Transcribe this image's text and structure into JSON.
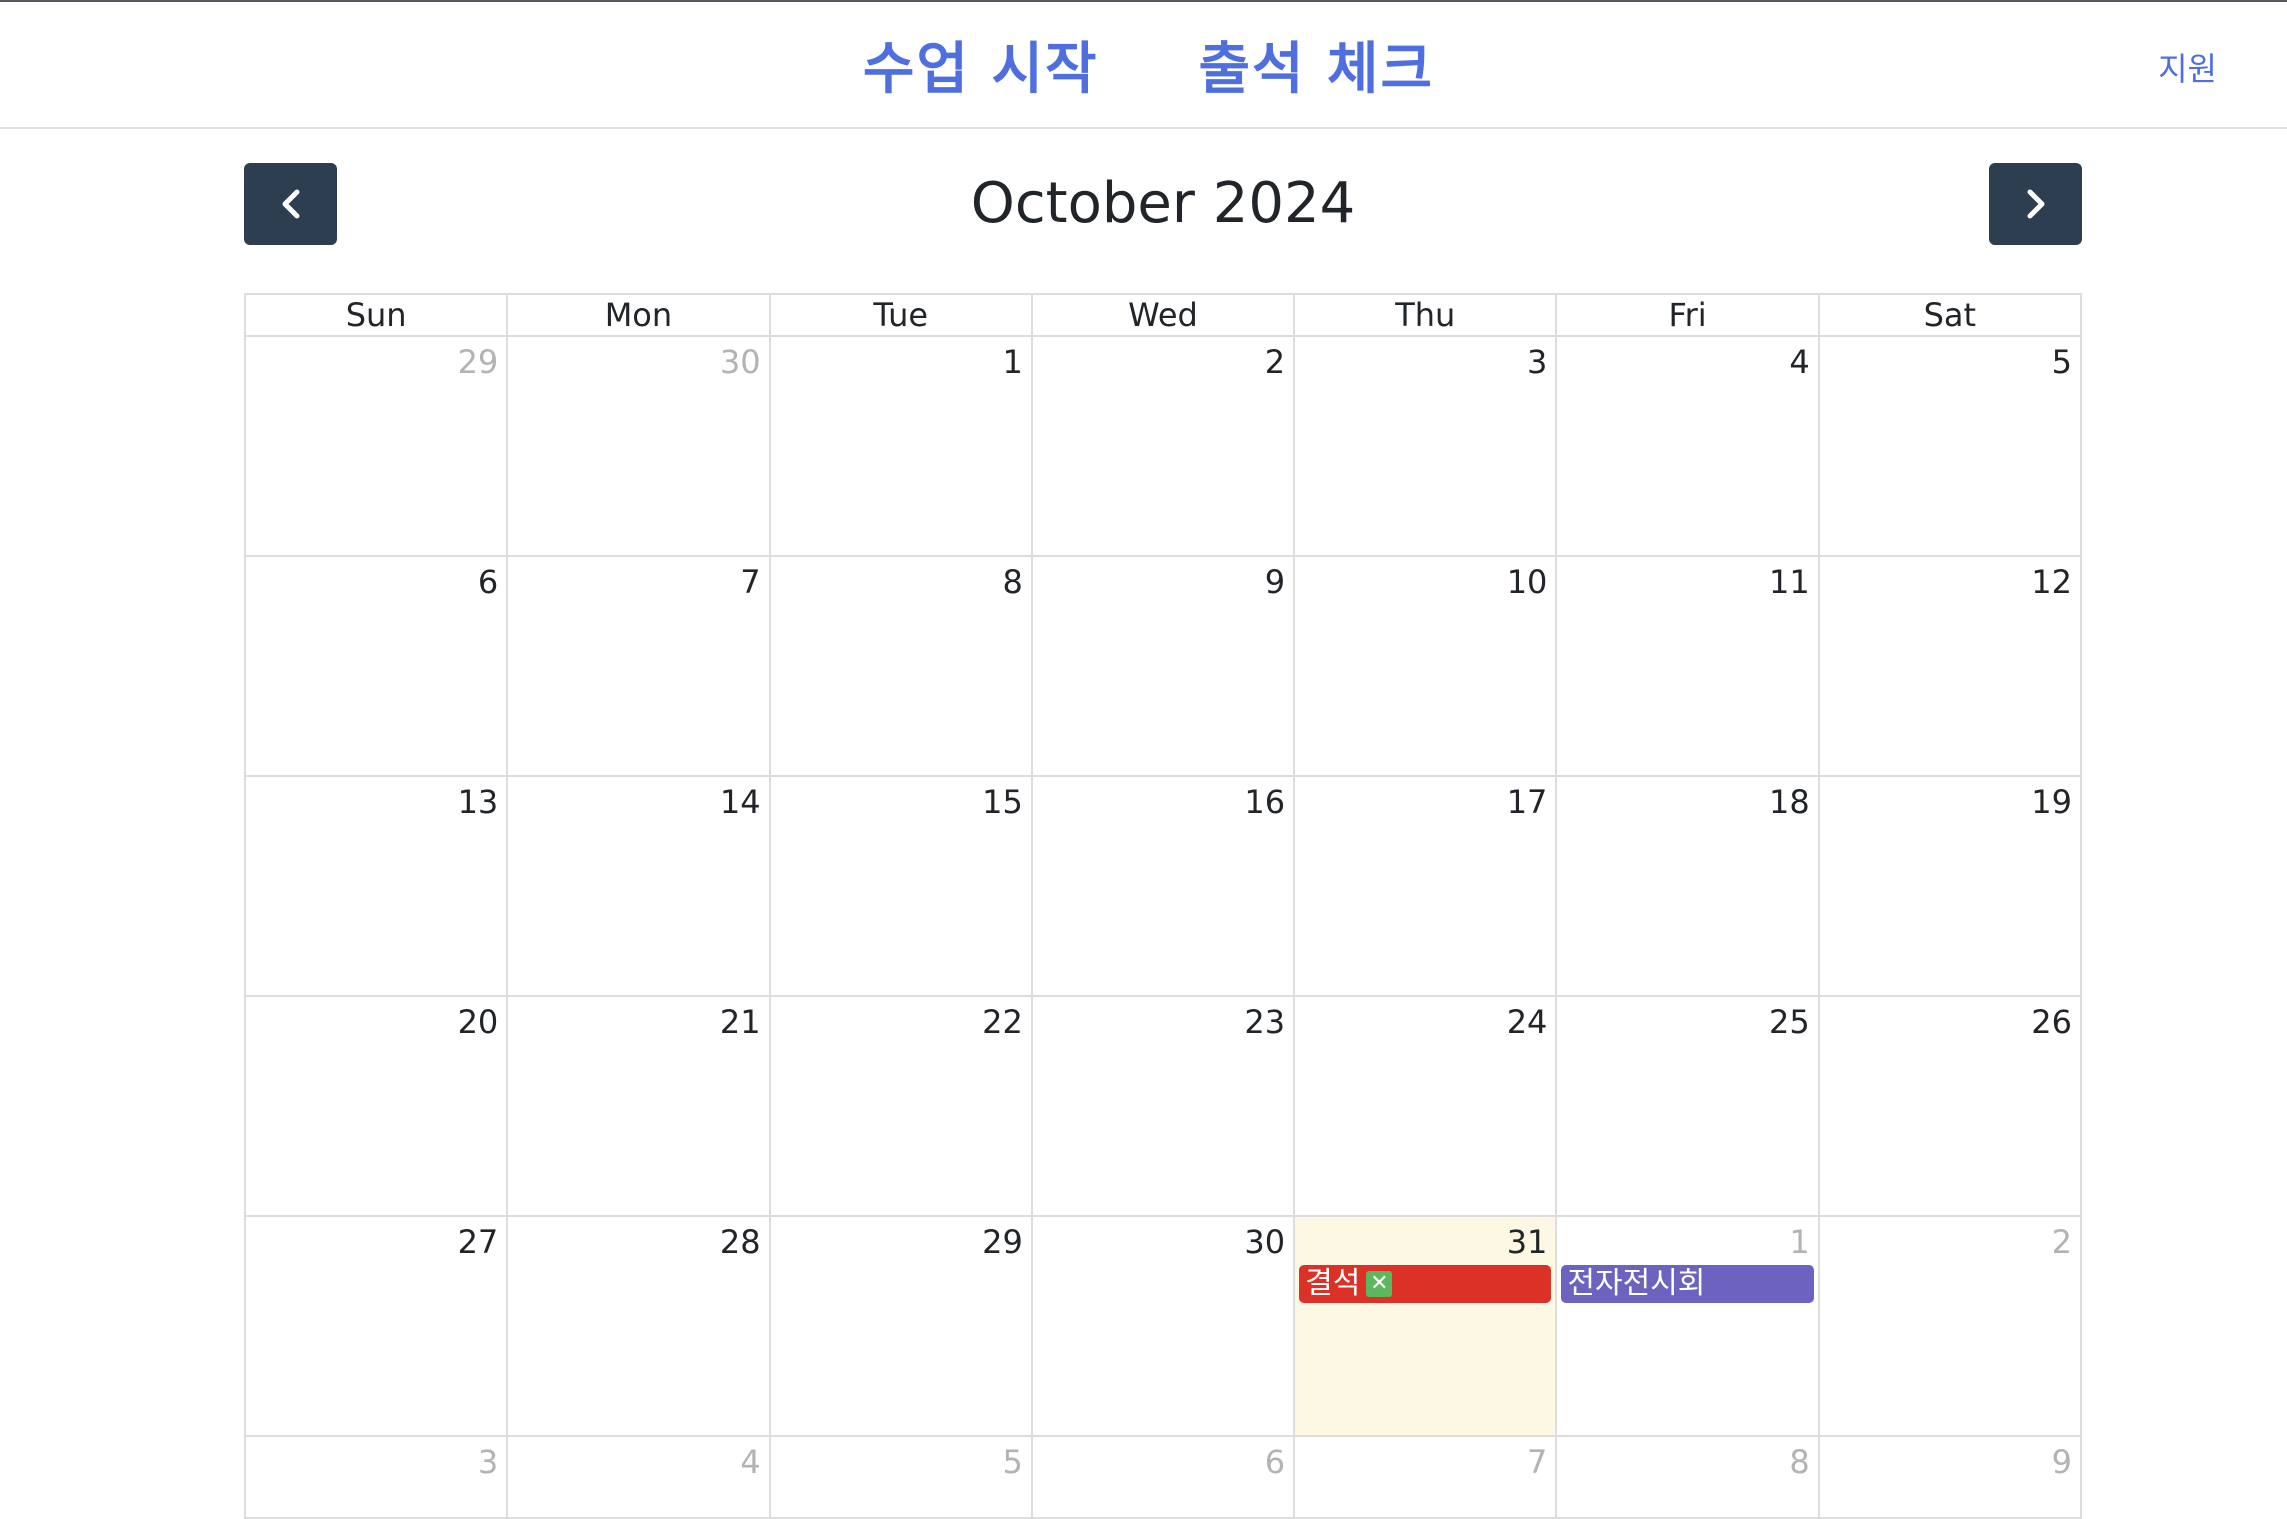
{
  "header": {
    "nav": [
      "수업 시작",
      "출석 체크"
    ],
    "support_label": "지원",
    "accent_color": "#4f6fe0"
  },
  "toolbar": {
    "title": "October 2024",
    "prev_icon": "chevron-left-icon",
    "next_icon": "chevron-right-icon"
  },
  "calendar": {
    "weekdays": [
      "Sun",
      "Mon",
      "Tue",
      "Wed",
      "Thu",
      "Fri",
      "Sat"
    ],
    "weeks": [
      [
        {
          "d": "29",
          "other": true
        },
        {
          "d": "30",
          "other": true
        },
        {
          "d": "1"
        },
        {
          "d": "2"
        },
        {
          "d": "3"
        },
        {
          "d": "4"
        },
        {
          "d": "5"
        }
      ],
      [
        {
          "d": "6"
        },
        {
          "d": "7"
        },
        {
          "d": "8"
        },
        {
          "d": "9"
        },
        {
          "d": "10"
        },
        {
          "d": "11"
        },
        {
          "d": "12"
        }
      ],
      [
        {
          "d": "13"
        },
        {
          "d": "14"
        },
        {
          "d": "15"
        },
        {
          "d": "16"
        },
        {
          "d": "17"
        },
        {
          "d": "18"
        },
        {
          "d": "19"
        }
      ],
      [
        {
          "d": "20"
        },
        {
          "d": "21"
        },
        {
          "d": "22"
        },
        {
          "d": "23"
        },
        {
          "d": "24"
        },
        {
          "d": "25"
        },
        {
          "d": "26"
        }
      ],
      [
        {
          "d": "27"
        },
        {
          "d": "28"
        },
        {
          "d": "29"
        },
        {
          "d": "30"
        },
        {
          "d": "31",
          "today": true,
          "events": [
            {
              "title": "결석",
              "color": "#dc3126",
              "badge": "✕"
            }
          ]
        },
        {
          "d": "1",
          "other": true,
          "events": [
            {
              "title": "전자전시회",
              "color": "#6c63c0"
            }
          ]
        },
        {
          "d": "2",
          "other": true
        }
      ],
      [
        {
          "d": "3",
          "other": true
        },
        {
          "d": "4",
          "other": true
        },
        {
          "d": "5",
          "other": true
        },
        {
          "d": "6",
          "other": true
        },
        {
          "d": "7",
          "other": true
        },
        {
          "d": "8",
          "other": true
        },
        {
          "d": "9",
          "other": true
        }
      ]
    ],
    "today_bg": "#fcf8e3",
    "button_color": "#2c3e50"
  }
}
